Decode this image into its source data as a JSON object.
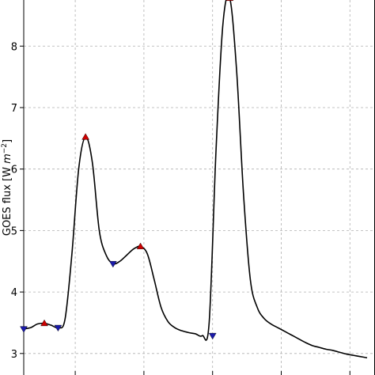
{
  "chart_data": {
    "type": "line",
    "title": "",
    "xlabel": "",
    "ylabel": "GOES flux [W m⁻²]",
    "ylabel_base": "GOES flux [W ",
    "ylabel_unit_m": "m",
    "ylabel_unit_exp": "−2",
    "ylabel_close": "]",
    "ylim": [
      2.65,
      8.75
    ],
    "xlim": [
      0,
      100
    ],
    "grid": true,
    "yticks": [
      3,
      4,
      5,
      6,
      7,
      8
    ],
    "ytick_labels": [
      "3",
      "4",
      "5",
      "6",
      "7",
      "8"
    ],
    "xticks_grid": [
      15,
      35,
      55,
      75,
      95
    ],
    "line_color": "#000000",
    "series": [
      {
        "x": [
          0,
          2,
          4,
          6,
          8,
          10,
          12,
          14,
          16,
          18,
          20,
          22,
          24,
          26,
          28,
          30,
          32,
          34,
          36,
          38,
          40,
          42,
          44,
          46,
          48,
          50,
          52,
          54,
          56,
          58,
          60,
          62,
          64,
          66,
          68,
          70,
          72,
          74,
          76,
          78,
          80,
          82,
          84,
          86,
          88,
          90,
          92,
          94,
          96,
          98,
          100
        ],
        "y": [
          3.4,
          3.42,
          3.48,
          3.49,
          3.46,
          3.42,
          3.55,
          4.6,
          6.0,
          6.52,
          6.1,
          5.0,
          4.6,
          4.46,
          4.5,
          4.6,
          4.7,
          4.74,
          4.62,
          4.2,
          3.75,
          3.52,
          3.42,
          3.37,
          3.34,
          3.32,
          3.29,
          3.5,
          6.3,
          8.35,
          8.78,
          7.6,
          5.6,
          4.2,
          3.75,
          3.57,
          3.48,
          3.42,
          3.36,
          3.3,
          3.24,
          3.18,
          3.13,
          3.1,
          3.07,
          3.05,
          3.02,
          2.99,
          2.97,
          2.95,
          2.93
        ]
      }
    ],
    "peak_markers": {
      "color": "#cc0000",
      "points": [
        [
          6,
          3.49
        ],
        [
          18,
          6.52
        ],
        [
          34,
          4.74
        ],
        [
          60,
          8.78
        ]
      ]
    },
    "trough_markers": {
      "color": "#1a1aaa",
      "points": [
        [
          0,
          3.4
        ],
        [
          10,
          3.42
        ],
        [
          26,
          4.46
        ],
        [
          55,
          3.29
        ]
      ]
    }
  }
}
